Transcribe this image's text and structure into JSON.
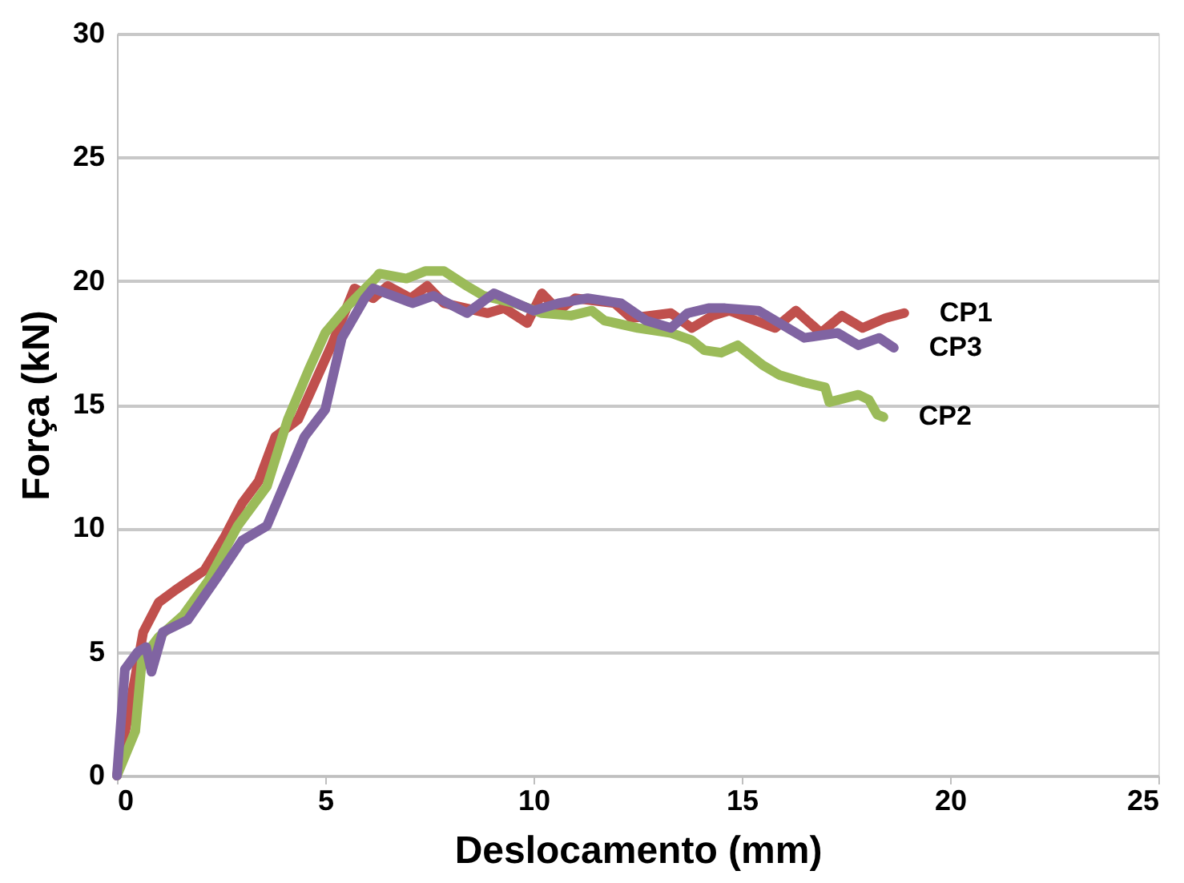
{
  "chart_data": {
    "type": "line",
    "xlabel": "Deslocamento (mm)",
    "ylabel": "Força (kN)",
    "xlim": [
      0,
      25
    ],
    "xticks": [
      0,
      5,
      10,
      15,
      20,
      25
    ],
    "ylim": [
      0,
      30
    ],
    "yticks": [
      0,
      5,
      10,
      15,
      20,
      25,
      30
    ],
    "grid": "y",
    "legend": false,
    "marker": "none",
    "line_style": "solid",
    "series": [
      {
        "name": "CP1",
        "color": "#c0504d",
        "x": [
          0,
          0.3,
          0.63,
          1.0,
          1.4,
          2.1,
          2.6,
          3.0,
          3.4,
          3.8,
          4.35,
          4.75,
          5.15,
          5.7,
          6.15,
          6.5,
          7.05,
          7.45,
          7.85,
          8.9,
          9.3,
          9.85,
          10.2,
          10.6,
          11.0,
          11.95,
          12.35,
          13.3,
          13.8,
          14.3,
          14.7,
          15.8,
          16.3,
          16.9,
          17.4,
          17.9,
          18.45,
          18.9
        ],
        "values": [
          0,
          2.7,
          5.8,
          7.0,
          7.5,
          8.3,
          9.7,
          11.0,
          11.9,
          13.7,
          14.4,
          15.9,
          17.4,
          19.7,
          19.3,
          19.8,
          19.3,
          19.8,
          19.1,
          18.7,
          18.9,
          18.3,
          19.5,
          18.8,
          19.3,
          19.1,
          18.5,
          18.7,
          18.1,
          18.6,
          18.8,
          18.1,
          18.8,
          17.9,
          18.6,
          18.1,
          18.5,
          18.7
        ]
      },
      {
        "name": "CP2",
        "color": "#9bbb59",
        "x": [
          0,
          0.44,
          0.6,
          1.0,
          1.6,
          2.2,
          2.9,
          3.6,
          4.1,
          4.6,
          5.0,
          5.55,
          6.2,
          6.3,
          6.95,
          7.4,
          7.85,
          8.4,
          8.8,
          9.55,
          10.2,
          10.9,
          11.4,
          11.7,
          12.5,
          13.3,
          13.8,
          14.1,
          14.5,
          14.9,
          15.5,
          15.9,
          16.5,
          17.0,
          17.1,
          17.8,
          18.05,
          18.25,
          18.4
        ],
        "values": [
          0,
          1.8,
          4.7,
          5.6,
          6.5,
          7.9,
          10.1,
          11.7,
          14.4,
          16.4,
          17.9,
          19.0,
          20.1,
          20.3,
          20.1,
          20.4,
          20.4,
          19.8,
          19.4,
          19.1,
          18.7,
          18.6,
          18.8,
          18.4,
          18.1,
          17.9,
          17.6,
          17.2,
          17.1,
          17.4,
          16.6,
          16.2,
          15.9,
          15.7,
          15.1,
          15.4,
          15.2,
          14.6,
          14.5
        ]
      },
      {
        "name": "CP3",
        "color": "#8064a2",
        "x": [
          0,
          0.19,
          0.5,
          0.7,
          0.83,
          1.1,
          1.7,
          2.4,
          3.0,
          3.6,
          4.0,
          4.5,
          5.0,
          5.4,
          5.95,
          6.15,
          7.1,
          7.6,
          8.4,
          9.05,
          10.0,
          10.6,
          11.3,
          12.1,
          12.7,
          13.3,
          13.7,
          14.2,
          14.6,
          15.4,
          16.5,
          17.3,
          17.8,
          18.3,
          18.65
        ],
        "values": [
          0,
          4.3,
          5.0,
          5.2,
          4.2,
          5.8,
          6.3,
          8.0,
          9.5,
          10.1,
          11.7,
          13.7,
          14.8,
          17.7,
          19.3,
          19.7,
          19.1,
          19.4,
          18.7,
          19.5,
          18.8,
          19.1,
          19.3,
          19.1,
          18.4,
          18.1,
          18.7,
          18.9,
          18.9,
          18.8,
          17.7,
          17.9,
          17.4,
          17.7,
          17.3
        ]
      }
    ]
  }
}
